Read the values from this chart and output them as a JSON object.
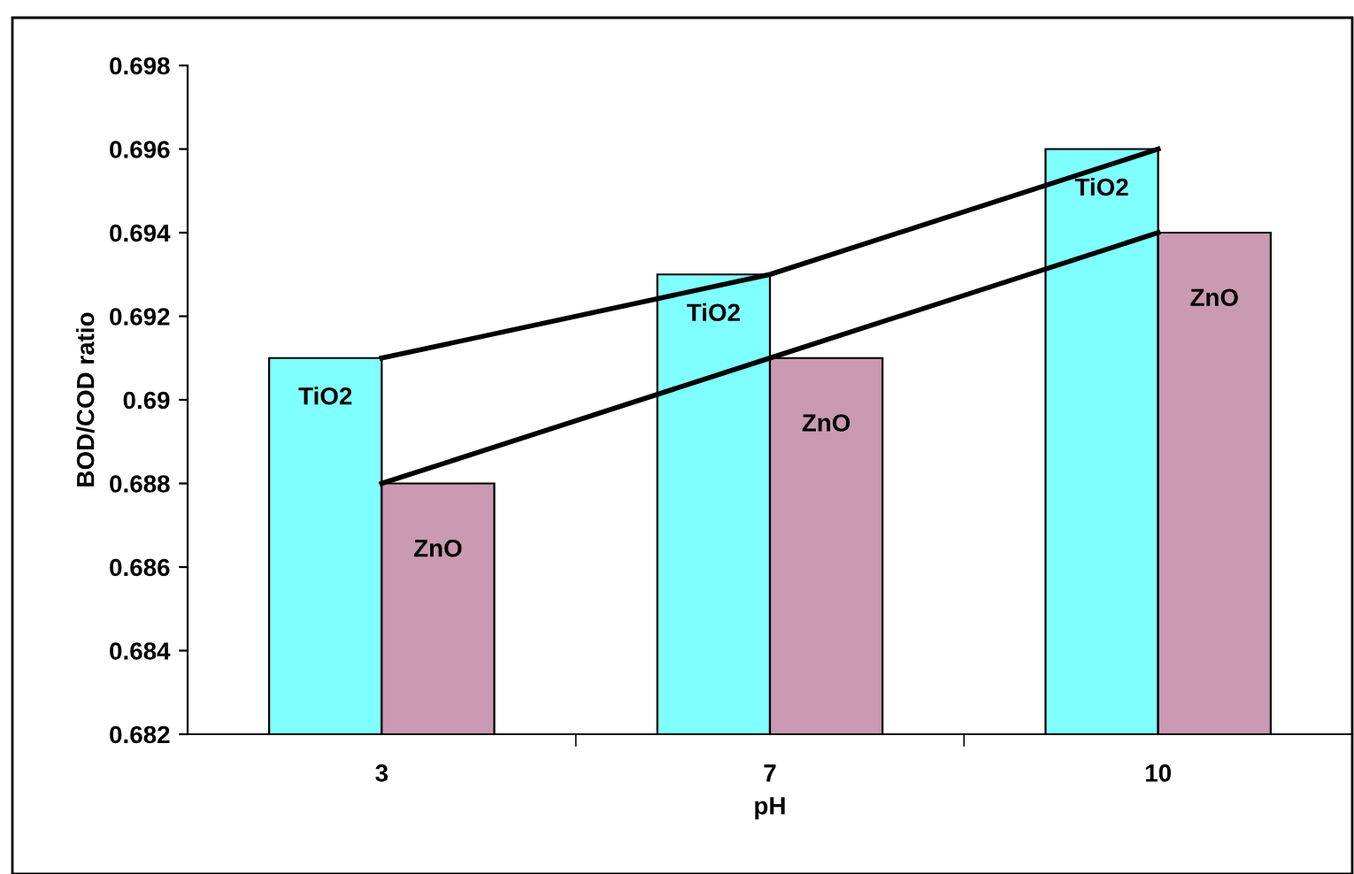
{
  "chart_data": {
    "type": "bar",
    "xlabel": "pH",
    "ylabel": "BOD/COD ratio",
    "categories": [
      "3",
      "7",
      "10"
    ],
    "series": [
      {
        "name": "TiO2",
        "color": "#80ffff",
        "values": [
          0.691,
          0.693,
          0.696
        ]
      },
      {
        "name": "ZnO",
        "color": "#c99ab2",
        "values": [
          0.688,
          0.691,
          0.694
        ]
      },
      {
        "type": "line",
        "color": "#000000",
        "values": [
          0.691,
          0.693,
          0.696
        ]
      },
      {
        "type": "line",
        "color": "#000000",
        "values": [
          0.688,
          0.691,
          0.694
        ]
      }
    ],
    "ylim": [
      0.682,
      0.698
    ],
    "yticks": [
      0.682,
      0.684,
      0.686,
      0.688,
      0.69,
      0.692,
      0.694,
      0.696,
      0.698
    ],
    "grid": false,
    "legend": false,
    "marker": "none",
    "line_style": "solid"
  }
}
